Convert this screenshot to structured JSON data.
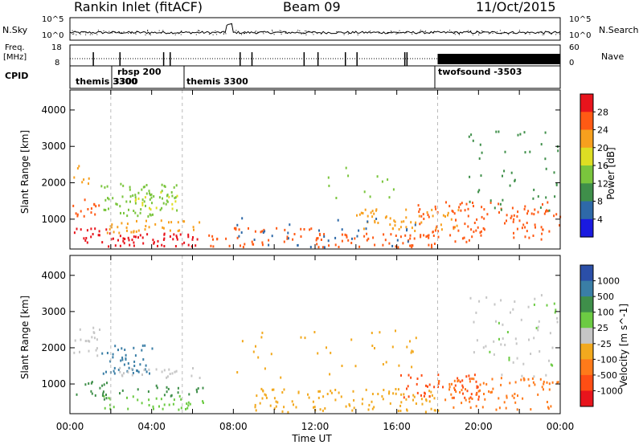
{
  "header": {
    "station": "Rankin Inlet (fitACF)",
    "beam": "Beam 09",
    "date": "11/Oct/2015"
  },
  "noise_panel": {
    "left_label": "N.Sky",
    "left_ticks": [
      "10^5",
      "10^0"
    ],
    "right_label": "N.Search",
    "right_ticks": [
      "10^5",
      "10^0"
    ]
  },
  "freq_panel": {
    "left_label_line1": "Freq.",
    "left_label_line2": "[MHz]",
    "left_ticks": [
      "18",
      "8"
    ],
    "right_label": "Nave",
    "right_ticks": [
      "60",
      "0"
    ]
  },
  "cpid_panel": {
    "label": "CPID",
    "segments": [
      {
        "text": "themis 3300",
        "start_h": 0.0
      },
      {
        "text": "rbsp 200",
        "start_h": 2.0
      },
      {
        "text": "3300",
        "start_h": 2.0
      },
      {
        "text": "themis 3300",
        "start_h": 5.5
      },
      {
        "text": "twofsound -3503",
        "start_h": 18.0
      }
    ]
  },
  "chart_data": [
    {
      "type": "heatmap",
      "quantity": "Power",
      "xlabel": "Time UT",
      "ylabel": "Slant Range [km]",
      "xlim_hours": [
        0,
        24
      ],
      "ylim_km": [
        180,
        4550
      ],
      "y_ticks": [
        1000,
        2000,
        3000,
        4000
      ],
      "colorbar_label": "Power [dB]",
      "colorbar_ticks": [
        "28",
        "24",
        "20",
        "16",
        "12",
        "8",
        "4"
      ],
      "colorbar_colors": [
        "#e8141c",
        "#ff5a14",
        "#f7a01e",
        "#dede23",
        "#7ac53d",
        "#3f8f4a",
        "#2e69a8",
        "#1a1ae0"
      ],
      "grid": false,
      "scatter_regions": [
        {
          "t0": 0.1,
          "t1": 1.8,
          "r0": 350,
          "r1": 800,
          "color": "#e8141c",
          "density": 0.5
        },
        {
          "t0": 1.8,
          "t1": 6.5,
          "r0": 280,
          "r1": 650,
          "color": "#e8141c",
          "density": 0.7
        },
        {
          "t0": 1.8,
          "t1": 6.5,
          "r0": 650,
          "r1": 1000,
          "color": "#f7a01e",
          "density": 0.5
        },
        {
          "t0": 0.1,
          "t1": 1.5,
          "r0": 1100,
          "r1": 1600,
          "color": "#ff5a14",
          "density": 0.5
        },
        {
          "t0": 0.1,
          "t1": 1.0,
          "r0": 2000,
          "r1": 2650,
          "color": "#f7a01e",
          "density": 0.3
        },
        {
          "t0": 1.5,
          "t1": 5.3,
          "r0": 1100,
          "r1": 2000,
          "color": "#7ac53d",
          "density": 0.5
        },
        {
          "t0": 3.0,
          "t1": 5.3,
          "r0": 1300,
          "r1": 1800,
          "color": "#dede23",
          "density": 0.3
        },
        {
          "t0": 6.5,
          "t1": 12.0,
          "r0": 250,
          "r1": 800,
          "color": "#ff5a14",
          "density": 0.3
        },
        {
          "t0": 12.0,
          "t1": 18.0,
          "r0": 250,
          "r1": 650,
          "color": "#ff5a14",
          "density": 0.5
        },
        {
          "t0": 14.0,
          "t1": 19.0,
          "r0": 700,
          "r1": 1300,
          "color": "#f7a01e",
          "density": 0.4
        },
        {
          "t0": 17.0,
          "t1": 24.0,
          "r0": 400,
          "r1": 1500,
          "color": "#ff5a14",
          "density": 0.35
        },
        {
          "t0": 19.5,
          "t1": 24.0,
          "r0": 1200,
          "r1": 3500,
          "color": "#3f8f4a",
          "density": 0.1
        },
        {
          "t0": 12.5,
          "t1": 16.0,
          "r0": 1500,
          "r1": 2500,
          "color": "#7ac53d",
          "density": 0.08
        },
        {
          "t0": 8.0,
          "t1": 17.0,
          "r0": 250,
          "r1": 1100,
          "color": "#2e69a8",
          "density": 0.1
        }
      ]
    },
    {
      "type": "heatmap",
      "quantity": "Velocity",
      "xlabel": "Time UT",
      "ylabel": "Slant Range [km]",
      "xlim_hours": [
        0,
        24
      ],
      "ylim_km": [
        180,
        4550
      ],
      "y_ticks": [
        1000,
        2000,
        3000,
        4000
      ],
      "x_tick_labels": [
        "00:00",
        "04:00",
        "08:00",
        "12:00",
        "16:00",
        "20:00",
        "00:00"
      ],
      "colorbar_label": "Velocity [m s^-1]",
      "colorbar_ticks": [
        "1000",
        "500",
        "100",
        "25",
        "-25",
        "-100",
        "-500",
        "-1000"
      ],
      "colorbar_colors": [
        "#2b4fa8",
        "#3a7ea6",
        "#3f8f4a",
        "#6ccb43",
        "#c6c6c6",
        "#f2a91e",
        "#ff7a1a",
        "#ff4e14",
        "#e8141c"
      ],
      "grid": false,
      "scatter_regions": [
        {
          "t0": 0.1,
          "t1": 1.5,
          "r0": 1800,
          "r1": 2600,
          "color": "#c6c6c6",
          "density": 0.4
        },
        {
          "t0": 0.1,
          "t1": 2.0,
          "r0": 600,
          "r1": 1100,
          "color": "#3f8f4a",
          "density": 0.4
        },
        {
          "t0": 1.5,
          "t1": 4.0,
          "r0": 1300,
          "r1": 2100,
          "color": "#3a7ea6",
          "density": 0.5
        },
        {
          "t0": 2.0,
          "t1": 6.5,
          "r0": 1200,
          "r1": 1500,
          "color": "#c6c6c6",
          "density": 0.4
        },
        {
          "t0": 1.5,
          "t1": 6.5,
          "r0": 300,
          "r1": 700,
          "color": "#6ccb43",
          "density": 0.4
        },
        {
          "t0": 1.5,
          "t1": 6.5,
          "r0": 700,
          "r1": 1000,
          "color": "#3f8f4a",
          "density": 0.3
        },
        {
          "t0": 9.0,
          "t1": 18.0,
          "r0": 250,
          "r1": 900,
          "color": "#f2a91e",
          "density": 0.4
        },
        {
          "t0": 16.0,
          "t1": 20.0,
          "r0": 600,
          "r1": 1300,
          "color": "#ff4e14",
          "density": 0.4
        },
        {
          "t0": 18.0,
          "t1": 24.0,
          "r0": 300,
          "r1": 1200,
          "color": "#ff7a1a",
          "density": 0.35
        },
        {
          "t0": 19.5,
          "t1": 24.0,
          "r0": 1200,
          "r1": 3500,
          "color": "#c6c6c6",
          "density": 0.1
        },
        {
          "t0": 20.5,
          "t1": 24.0,
          "r0": 1500,
          "r1": 3300,
          "color": "#6ccb43",
          "density": 0.05
        },
        {
          "t0": 8.0,
          "t1": 17.0,
          "r0": 1200,
          "r1": 2500,
          "color": "#f2a91e",
          "density": 0.07
        }
      ]
    }
  ]
}
